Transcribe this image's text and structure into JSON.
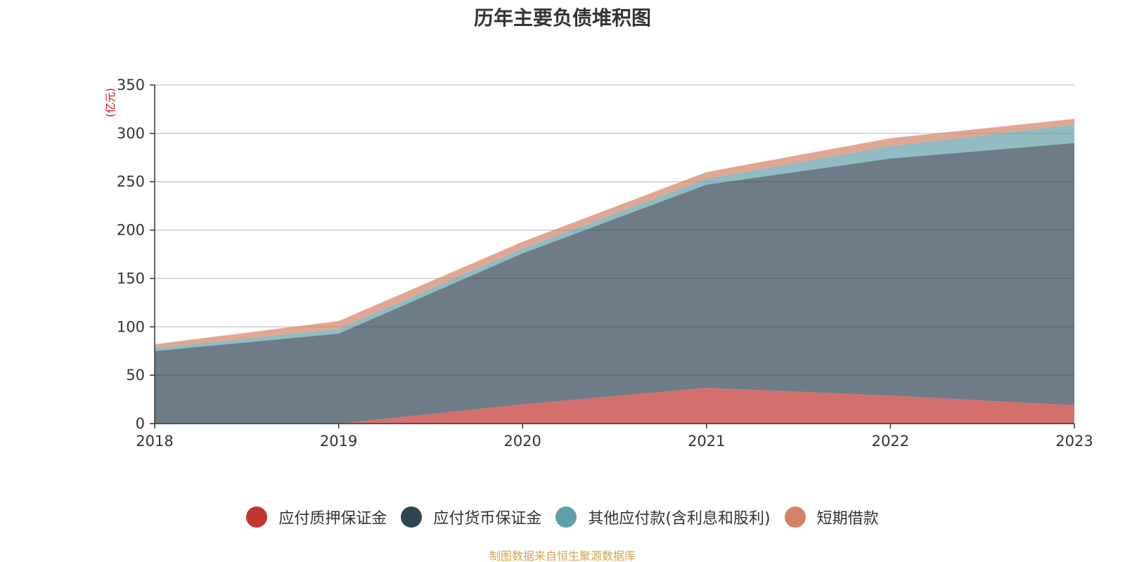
{
  "chart_data": {
    "type": "area",
    "title": "历年主要负债堆积图",
    "unit_label": "(亿元)",
    "x": [
      "2018",
      "2019",
      "2020",
      "2021",
      "2022",
      "2023"
    ],
    "ylim": [
      0,
      350
    ],
    "y_ticks": [
      0,
      50,
      100,
      150,
      200,
      250,
      300,
      350
    ],
    "grid": true,
    "stacked": true,
    "legend_position": "bottom",
    "series": [
      {
        "name": "应付质押保证金",
        "color": "#c23531",
        "values": [
          0,
          0,
          20,
          37,
          29,
          19
        ]
      },
      {
        "name": "应付货币保证金",
        "color": "#2f4554",
        "values": [
          75,
          93,
          156,
          210,
          245,
          271
        ]
      },
      {
        "name": "其他应付款(含利息和股利)",
        "color": "#61a0a8",
        "values": [
          3,
          5,
          5,
          6,
          13,
          19
        ]
      },
      {
        "name": "短期借款",
        "color": "#d48265",
        "values": [
          4,
          8,
          7,
          7,
          8,
          6
        ]
      }
    ]
  },
  "footer": {
    "source": "制图数据来自恒生聚源数据库"
  }
}
